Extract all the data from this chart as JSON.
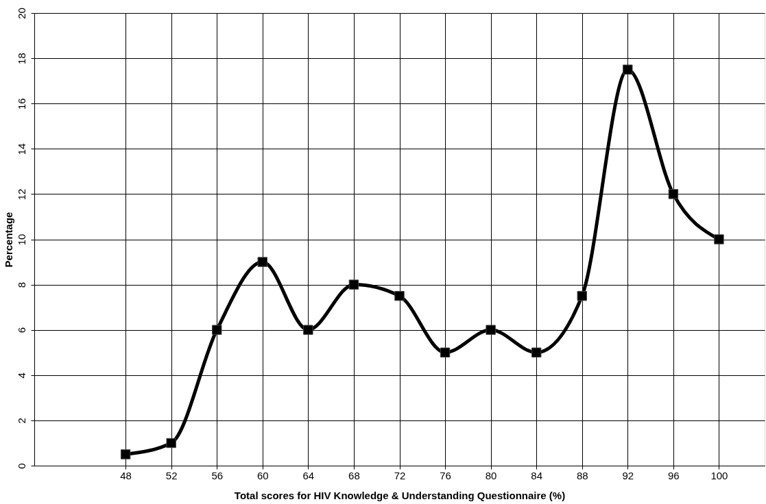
{
  "chart_data": {
    "type": "line",
    "xlabel": "Total scores for HIV Knowledge & Understanding Questionnaire (%)",
    "ylabel": "Percentage",
    "x": [
      48,
      52,
      56,
      60,
      64,
      68,
      72,
      76,
      80,
      84,
      88,
      92,
      96,
      100
    ],
    "values": [
      0.5,
      1.0,
      6.0,
      9.0,
      6.0,
      8.0,
      7.5,
      5.0,
      6.0,
      5.0,
      7.5,
      17.5,
      12.0,
      10.0
    ],
    "color": "#000000",
    "xlim": [
      40,
      104
    ],
    "xticks": [
      48,
      52,
      56,
      60,
      64,
      68,
      72,
      76,
      80,
      84,
      88,
      92,
      96,
      100
    ],
    "ylim": [
      0,
      20
    ],
    "yticks": [
      0,
      2,
      4,
      6,
      8,
      10,
      12,
      14,
      16,
      18,
      20
    ],
    "grid": true,
    "marker": "square",
    "line_style": "solid"
  }
}
